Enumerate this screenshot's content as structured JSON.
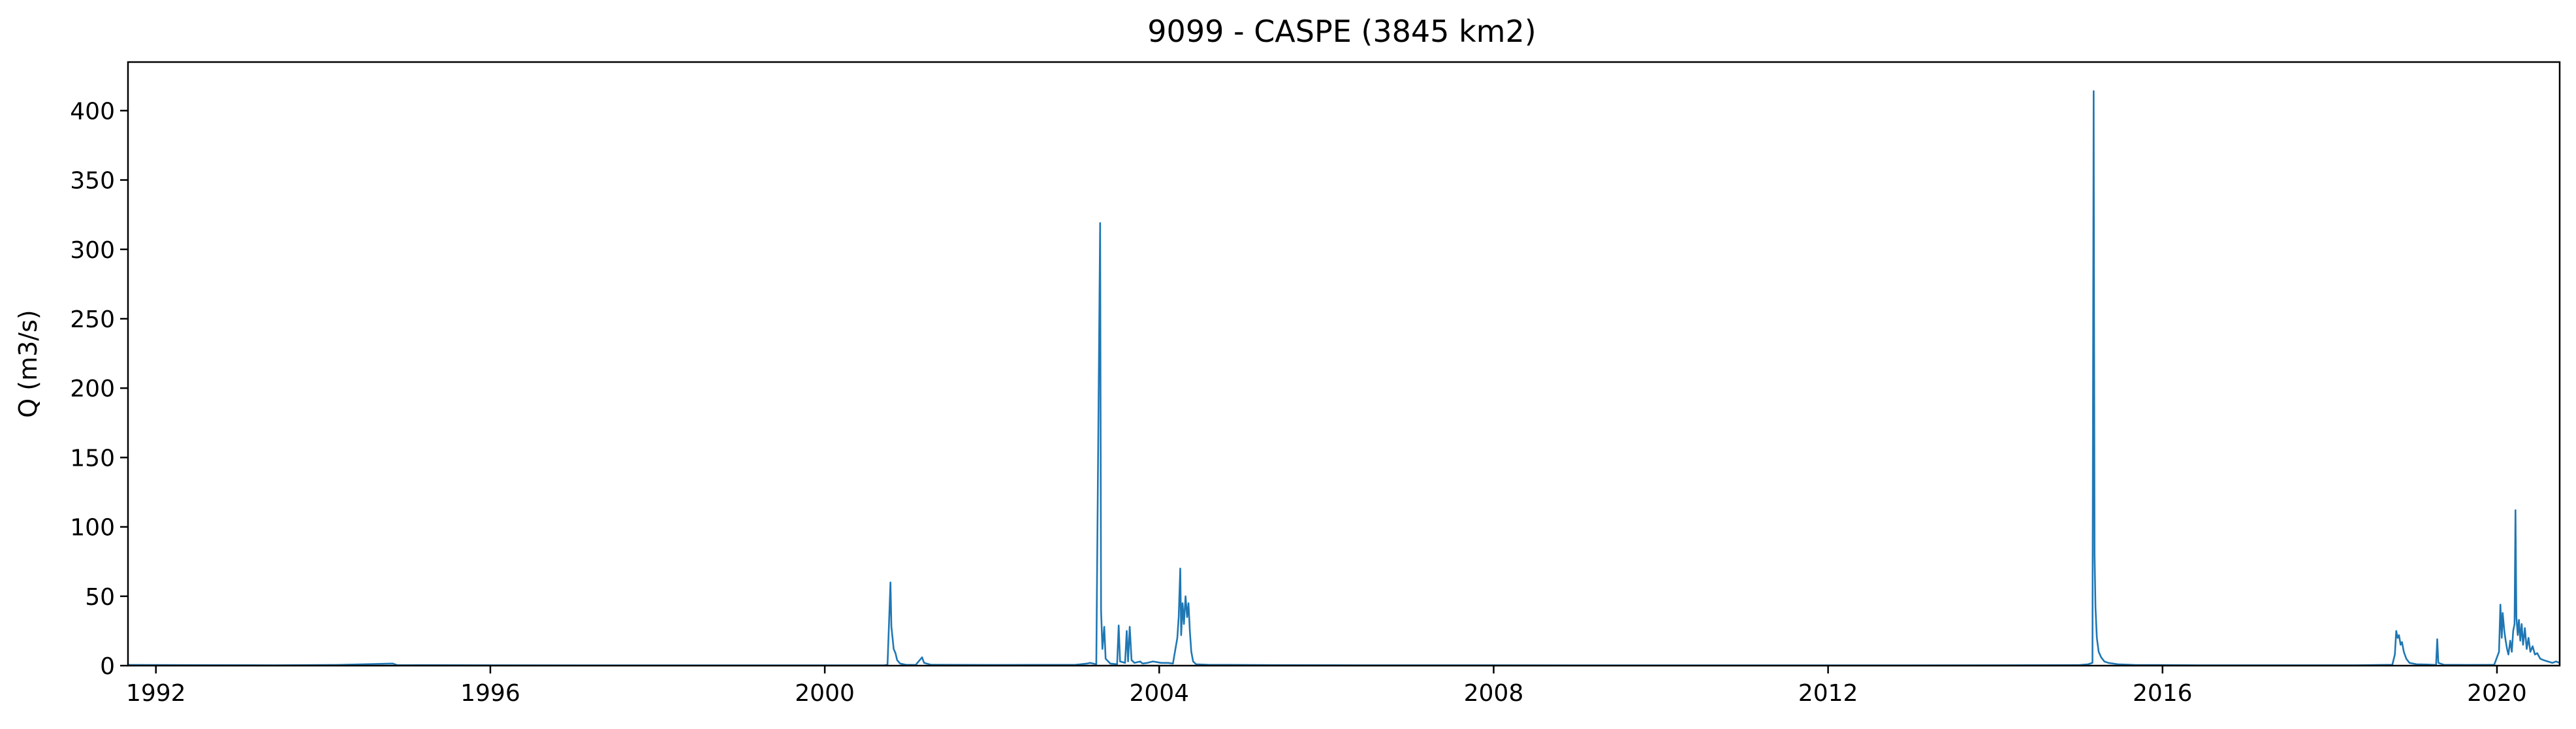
{
  "chart_data": {
    "type": "line",
    "title": "9099 - CASPE (3845 km2)",
    "xlabel": "",
    "ylabel": "Q (m3/s)",
    "xlim": [
      "1991-09-01",
      "2020-10-01"
    ],
    "ylim": [
      0,
      435
    ],
    "x_ticks": [
      {
        "date": "1992-01-01",
        "label": "1992"
      },
      {
        "date": "1996-01-01",
        "label": "1996"
      },
      {
        "date": "2000-01-01",
        "label": "2000"
      },
      {
        "date": "2004-01-01",
        "label": "2004"
      },
      {
        "date": "2008-01-01",
        "label": "2008"
      },
      {
        "date": "2012-01-01",
        "label": "2012"
      },
      {
        "date": "2016-01-01",
        "label": "2016"
      },
      {
        "date": "2020-01-01",
        "label": "2020"
      }
    ],
    "y_ticks": [
      0,
      50,
      100,
      150,
      200,
      250,
      300,
      350,
      400
    ],
    "grid": false,
    "line_color": "#1f77b4",
    "series": [
      {
        "points": [
          [
            "1991-09-01",
            0.5
          ],
          [
            "1992-06-01",
            0.4
          ],
          [
            "1993-06-01",
            0.3
          ],
          [
            "1994-03-01",
            0.5
          ],
          [
            "1994-11-01",
            1.5
          ],
          [
            "1994-11-20",
            0.4
          ],
          [
            "1996-01-01",
            0.3
          ],
          [
            "1998-01-01",
            0.2
          ],
          [
            "2000-01-01",
            0.2
          ],
          [
            "2000-09-20",
            0.3
          ],
          [
            "2000-10-01",
            0.8
          ],
          [
            "2000-10-14",
            60
          ],
          [
            "2000-10-18",
            28
          ],
          [
            "2000-10-23",
            20
          ],
          [
            "2000-10-28",
            12
          ],
          [
            "2000-11-05",
            9
          ],
          [
            "2000-11-12",
            4
          ],
          [
            "2000-11-25",
            1.5
          ],
          [
            "2000-12-20",
            0.6
          ],
          [
            "2001-02-01",
            0.5
          ],
          [
            "2001-03-01",
            6
          ],
          [
            "2001-03-10",
            2
          ],
          [
            "2001-04-10",
            0.6
          ],
          [
            "2002-01-01",
            0.5
          ],
          [
            "2003-01-01",
            0.6
          ],
          [
            "2003-02-20",
            1.5
          ],
          [
            "2003-03-05",
            2
          ],
          [
            "2003-04-01",
            1
          ],
          [
            "2003-04-18",
            319
          ],
          [
            "2003-04-22",
            40
          ],
          [
            "2003-04-28",
            12
          ],
          [
            "2003-05-06",
            28
          ],
          [
            "2003-05-12",
            5
          ],
          [
            "2003-06-01",
            1.5
          ],
          [
            "2003-07-01",
            1
          ],
          [
            "2003-07-08",
            29
          ],
          [
            "2003-07-14",
            3
          ],
          [
            "2003-08-05",
            2
          ],
          [
            "2003-08-12",
            25
          ],
          [
            "2003-08-18",
            3
          ],
          [
            "2003-08-25",
            28
          ],
          [
            "2003-09-02",
            4
          ],
          [
            "2003-09-15",
            2
          ],
          [
            "2003-10-10",
            3
          ],
          [
            "2003-10-20",
            1.5
          ],
          [
            "2003-11-10",
            2
          ],
          [
            "2003-12-05",
            3
          ],
          [
            "2004-01-10",
            2
          ],
          [
            "2004-02-10",
            2
          ],
          [
            "2004-03-01",
            1.5
          ],
          [
            "2004-03-20",
            20
          ],
          [
            "2004-03-26",
            35
          ],
          [
            "2004-04-02",
            70
          ],
          [
            "2004-04-06",
            22
          ],
          [
            "2004-04-12",
            45
          ],
          [
            "2004-04-18",
            30
          ],
          [
            "2004-04-25",
            50
          ],
          [
            "2004-05-02",
            35
          ],
          [
            "2004-05-08",
            45
          ],
          [
            "2004-05-14",
            25
          ],
          [
            "2004-05-20",
            10
          ],
          [
            "2004-05-28",
            3
          ],
          [
            "2004-06-10",
            1
          ],
          [
            "2004-08-01",
            0.6
          ],
          [
            "2005-06-01",
            0.4
          ],
          [
            "2006-06-01",
            0.3
          ],
          [
            "2008-01-01",
            0.3
          ],
          [
            "2010-01-01",
            0.2
          ],
          [
            "2012-01-01",
            0.2
          ],
          [
            "2014-01-01",
            0.3
          ],
          [
            "2015-01-01",
            0.4
          ],
          [
            "2015-02-10",
            1
          ],
          [
            "2015-03-01",
            2
          ],
          [
            "2015-03-06",
            414
          ],
          [
            "2015-03-10",
            80
          ],
          [
            "2015-03-14",
            42
          ],
          [
            "2015-03-20",
            20
          ],
          [
            "2015-03-28",
            10
          ],
          [
            "2015-04-08",
            6
          ],
          [
            "2015-04-22",
            3
          ],
          [
            "2015-05-10",
            2
          ],
          [
            "2015-06-20",
            1
          ],
          [
            "2015-09-01",
            0.5
          ],
          [
            "2016-06-01",
            0.3
          ],
          [
            "2017-06-01",
            0.3
          ],
          [
            "2018-05-01",
            0.3
          ],
          [
            "2018-10-01",
            0.6
          ],
          [
            "2018-10-12",
            8
          ],
          [
            "2018-10-18",
            25
          ],
          [
            "2018-10-24",
            20
          ],
          [
            "2018-10-30",
            22
          ],
          [
            "2018-11-06",
            15
          ],
          [
            "2018-11-12",
            17
          ],
          [
            "2018-11-20",
            10
          ],
          [
            "2018-12-01",
            5
          ],
          [
            "2018-12-15",
            2
          ],
          [
            "2019-01-15",
            1
          ],
          [
            "2019-03-01",
            0.8
          ],
          [
            "2019-04-10",
            0.5
          ],
          [
            "2019-04-15",
            19
          ],
          [
            "2019-04-20",
            2
          ],
          [
            "2019-05-15",
            0.6
          ],
          [
            "2019-09-01",
            0.5
          ],
          [
            "2019-12-20",
            0.6
          ],
          [
            "2020-01-10",
            10
          ],
          [
            "2020-01-16",
            44
          ],
          [
            "2020-01-22",
            20
          ],
          [
            "2020-01-26",
            38
          ],
          [
            "2020-02-02",
            25
          ],
          [
            "2020-02-08",
            18
          ],
          [
            "2020-02-14",
            12
          ],
          [
            "2020-02-20",
            8
          ],
          [
            "2020-02-28",
            18
          ],
          [
            "2020-03-06",
            10
          ],
          [
            "2020-03-12",
            25
          ],
          [
            "2020-03-18",
            30
          ],
          [
            "2020-03-22",
            112
          ],
          [
            "2020-03-26",
            35
          ],
          [
            "2020-04-01",
            22
          ],
          [
            "2020-04-06",
            33
          ],
          [
            "2020-04-12",
            18
          ],
          [
            "2020-04-18",
            30
          ],
          [
            "2020-04-24",
            15
          ],
          [
            "2020-05-02",
            27
          ],
          [
            "2020-05-10",
            12
          ],
          [
            "2020-05-18",
            20
          ],
          [
            "2020-05-26",
            10
          ],
          [
            "2020-06-05",
            14
          ],
          [
            "2020-06-15",
            8
          ],
          [
            "2020-06-25",
            9
          ],
          [
            "2020-07-08",
            5
          ],
          [
            "2020-07-22",
            4
          ],
          [
            "2020-08-10",
            3
          ],
          [
            "2020-08-30",
            2
          ],
          [
            "2020-09-15",
            3
          ],
          [
            "2020-09-30",
            2
          ]
        ]
      }
    ]
  }
}
